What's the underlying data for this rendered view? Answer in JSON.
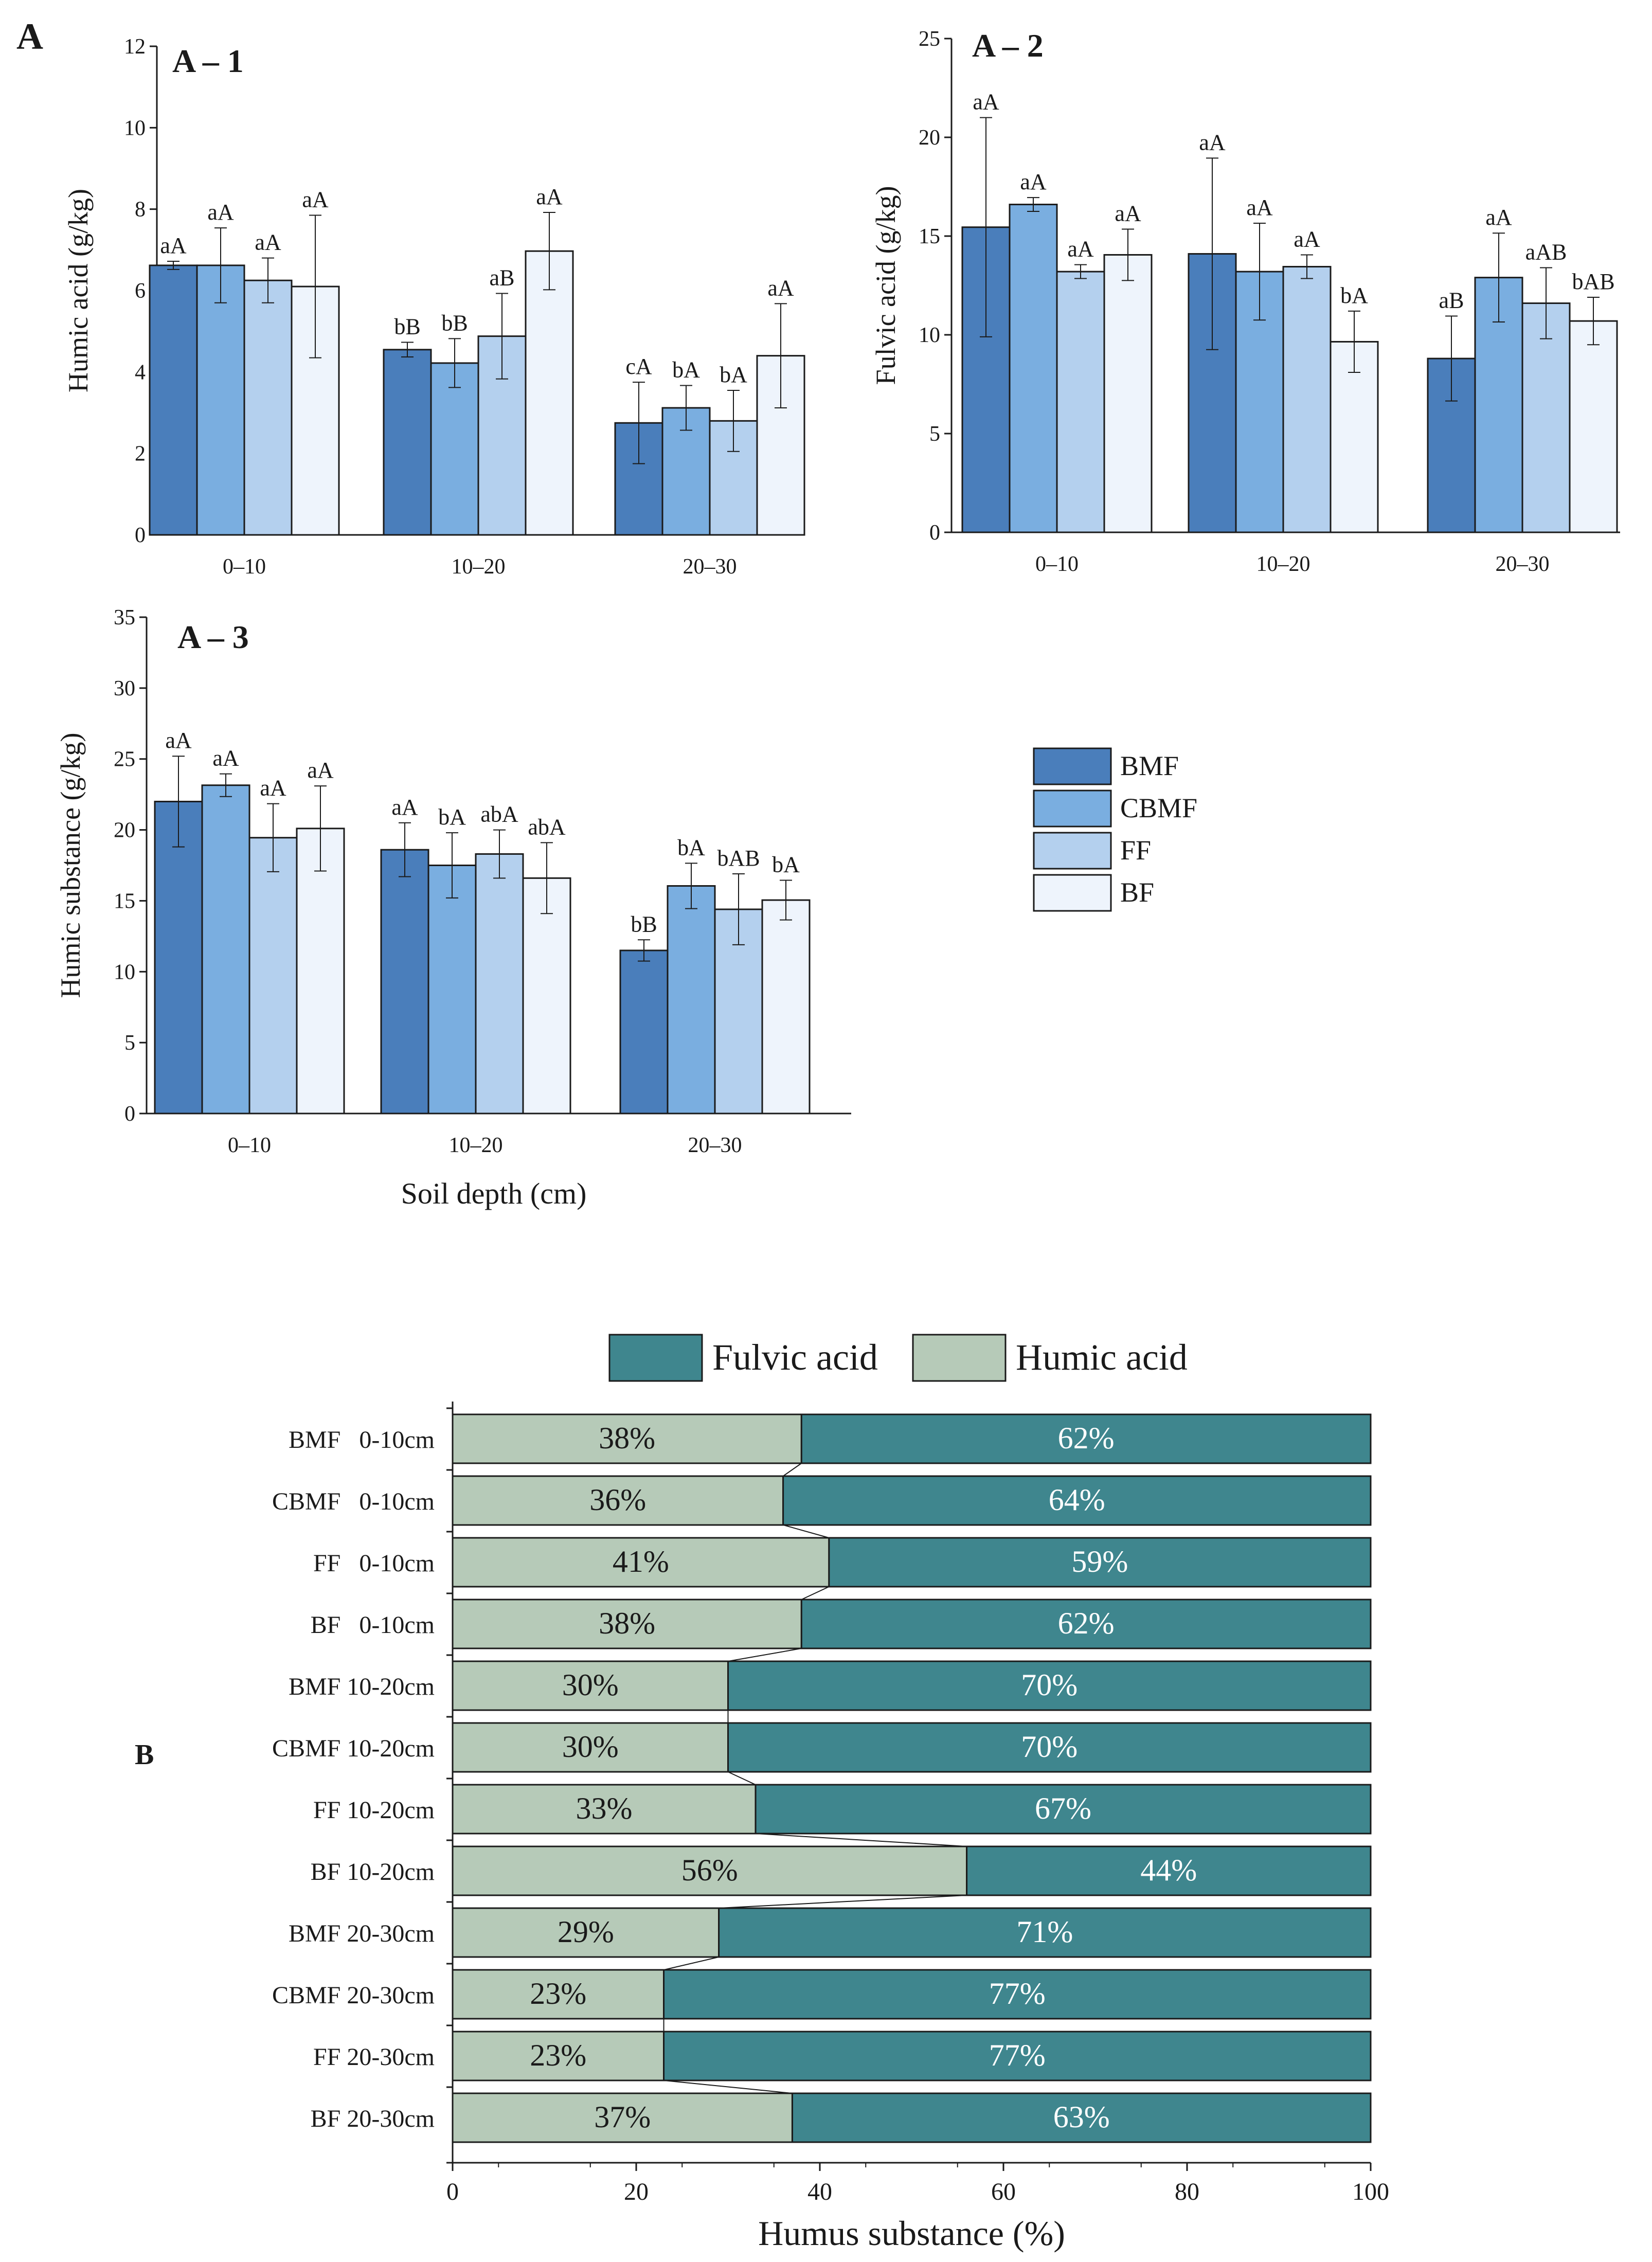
{
  "panel_labels": {
    "A": "A",
    "B": "B"
  },
  "colors": {
    "BMF": "#4a7ebb",
    "CBMF": "#7aaee0",
    "FF": "#b4d0ee",
    "BF": "#eef4fc",
    "fulvic": "#3f868e",
    "humic": "#b6cab8",
    "axis": "#1a1a1a"
  },
  "legend_a": [
    {
      "key": "BMF",
      "label": "BMF"
    },
    {
      "key": "CBMF",
      "label": "CBMF"
    },
    {
      "key": "FF",
      "label": "FF"
    },
    {
      "key": "BF",
      "label": "BF"
    }
  ],
  "legend_b": [
    {
      "key": "fulvic",
      "label": "Fulvic acid"
    },
    {
      "key": "humic",
      "label": "Humic acid"
    }
  ],
  "chart_data": [
    {
      "id": "A1",
      "type": "bar",
      "title": "A – 1",
      "ylabel": "Humic acid (g/kg)",
      "xlabel": "",
      "ylim": [
        0,
        12
      ],
      "yticks": [
        0,
        2,
        4,
        6,
        8,
        10,
        12
      ],
      "categories": [
        "0–10",
        "10–20",
        "20–30"
      ],
      "series": [
        {
          "name": "BMF",
          "values": [
            6.62,
            4.55,
            2.75
          ],
          "errors": [
            0.1,
            0.18,
            1.0
          ],
          "labels": [
            "aA",
            "bB",
            "cA"
          ]
        },
        {
          "name": "CBMF",
          "values": [
            6.62,
            4.22,
            3.12
          ],
          "errors": [
            0.92,
            0.6,
            0.55
          ],
          "labels": [
            "aA",
            "bB",
            "bA"
          ]
        },
        {
          "name": "FF",
          "values": [
            6.25,
            4.88,
            2.8
          ],
          "errors": [
            0.55,
            1.05,
            0.75
          ],
          "labels": [
            "aA",
            "aB",
            "bA"
          ]
        },
        {
          "name": "BF",
          "values": [
            6.1,
            6.97,
            4.4
          ],
          "errors": [
            1.75,
            0.95,
            1.28
          ],
          "labels": [
            "aA",
            "aA",
            "aA"
          ]
        }
      ]
    },
    {
      "id": "A2",
      "type": "bar",
      "title": "A – 2",
      "ylabel": "Fulvic acid (g/kg)",
      "xlabel": "",
      "ylim": [
        0,
        25
      ],
      "yticks": [
        0,
        5,
        10,
        15,
        20,
        25
      ],
      "categories": [
        "0–10",
        "10–20",
        "20–30"
      ],
      "series": [
        {
          "name": "BMF",
          "values": [
            15.45,
            14.1,
            8.8
          ],
          "errors": [
            5.55,
            4.85,
            2.15
          ],
          "labels": [
            "aA",
            "aA",
            "aB"
          ]
        },
        {
          "name": "CBMF",
          "values": [
            16.6,
            13.2,
            12.9
          ],
          "errors": [
            0.35,
            2.45,
            2.25
          ],
          "labels": [
            "aA",
            "aA",
            "aA"
          ]
        },
        {
          "name": "FF",
          "values": [
            13.2,
            13.45,
            11.6
          ],
          "errors": [
            0.35,
            0.6,
            1.8
          ],
          "labels": [
            "aA",
            "aA",
            "aAB"
          ]
        },
        {
          "name": "BF",
          "values": [
            14.05,
            9.65,
            10.7
          ],
          "errors": [
            1.3,
            1.55,
            1.2
          ],
          "labels": [
            "aA",
            "bA",
            "bAB"
          ]
        }
      ]
    },
    {
      "id": "A3",
      "type": "bar",
      "title": "A – 3",
      "ylabel": "Humic substance (g/kg)",
      "xlabel": "Soil depth (cm)",
      "ylim": [
        0,
        35
      ],
      "yticks": [
        0,
        5,
        10,
        15,
        20,
        25,
        30,
        35
      ],
      "categories": [
        "0–10",
        "10–20",
        "20–30"
      ],
      "series": [
        {
          "name": "BMF",
          "values": [
            22.0,
            18.6,
            11.5
          ],
          "errors": [
            3.2,
            1.9,
            0.75
          ],
          "labels": [
            "aA",
            "aA",
            "bB"
          ]
        },
        {
          "name": "CBMF",
          "values": [
            23.15,
            17.5,
            16.05
          ],
          "errors": [
            0.8,
            2.3,
            1.6
          ],
          "labels": [
            "aA",
            "bA",
            "bA"
          ]
        },
        {
          "name": "FF",
          "values": [
            19.45,
            18.3,
            14.4
          ],
          "errors": [
            2.4,
            1.7,
            2.5
          ],
          "labels": [
            "aA",
            "abA",
            "bAB"
          ]
        },
        {
          "name": "BF",
          "values": [
            20.1,
            16.6,
            15.05
          ],
          "errors": [
            3.0,
            2.5,
            1.4
          ],
          "labels": [
            "aA",
            "abA",
            "bA"
          ]
        }
      ]
    },
    {
      "id": "B",
      "type": "stacked-bar-horizontal",
      "xlabel": "Humus substance (%)",
      "xlim": [
        0,
        100
      ],
      "xticks": [
        0,
        20,
        40,
        60,
        80,
        100
      ],
      "categories": [
        "BMF   0-10cm",
        "CBMF   0-10cm",
        "FF   0-10cm",
        "BF   0-10cm",
        "BMF 10-20cm",
        "CBMF 10-20cm",
        "FF 10-20cm",
        "BF 10-20cm",
        "BMF 20-30cm",
        "CBMF 20-30cm",
        "FF 20-30cm",
        "BF 20-30cm"
      ],
      "series": [
        {
          "name": "Humic acid",
          "values": [
            38,
            36,
            41,
            38,
            30,
            30,
            33,
            56,
            29,
            23,
            23,
            37
          ],
          "labels": [
            "38%",
            "36%",
            "41%",
            "38%",
            "30%",
            "30%",
            "33%",
            "56%",
            "29%",
            "23%",
            "23%",
            "37%"
          ]
        },
        {
          "name": "Fulvic acid",
          "values": [
            62,
            64,
            59,
            62,
            70,
            70,
            67,
            44,
            71,
            77,
            77,
            63
          ],
          "labels": [
            "62%",
            "64%",
            "59%",
            "62%",
            "70%",
            "70%",
            "67%",
            "44%",
            "71%",
            "77%",
            "77%",
            "63%"
          ]
        }
      ]
    }
  ]
}
